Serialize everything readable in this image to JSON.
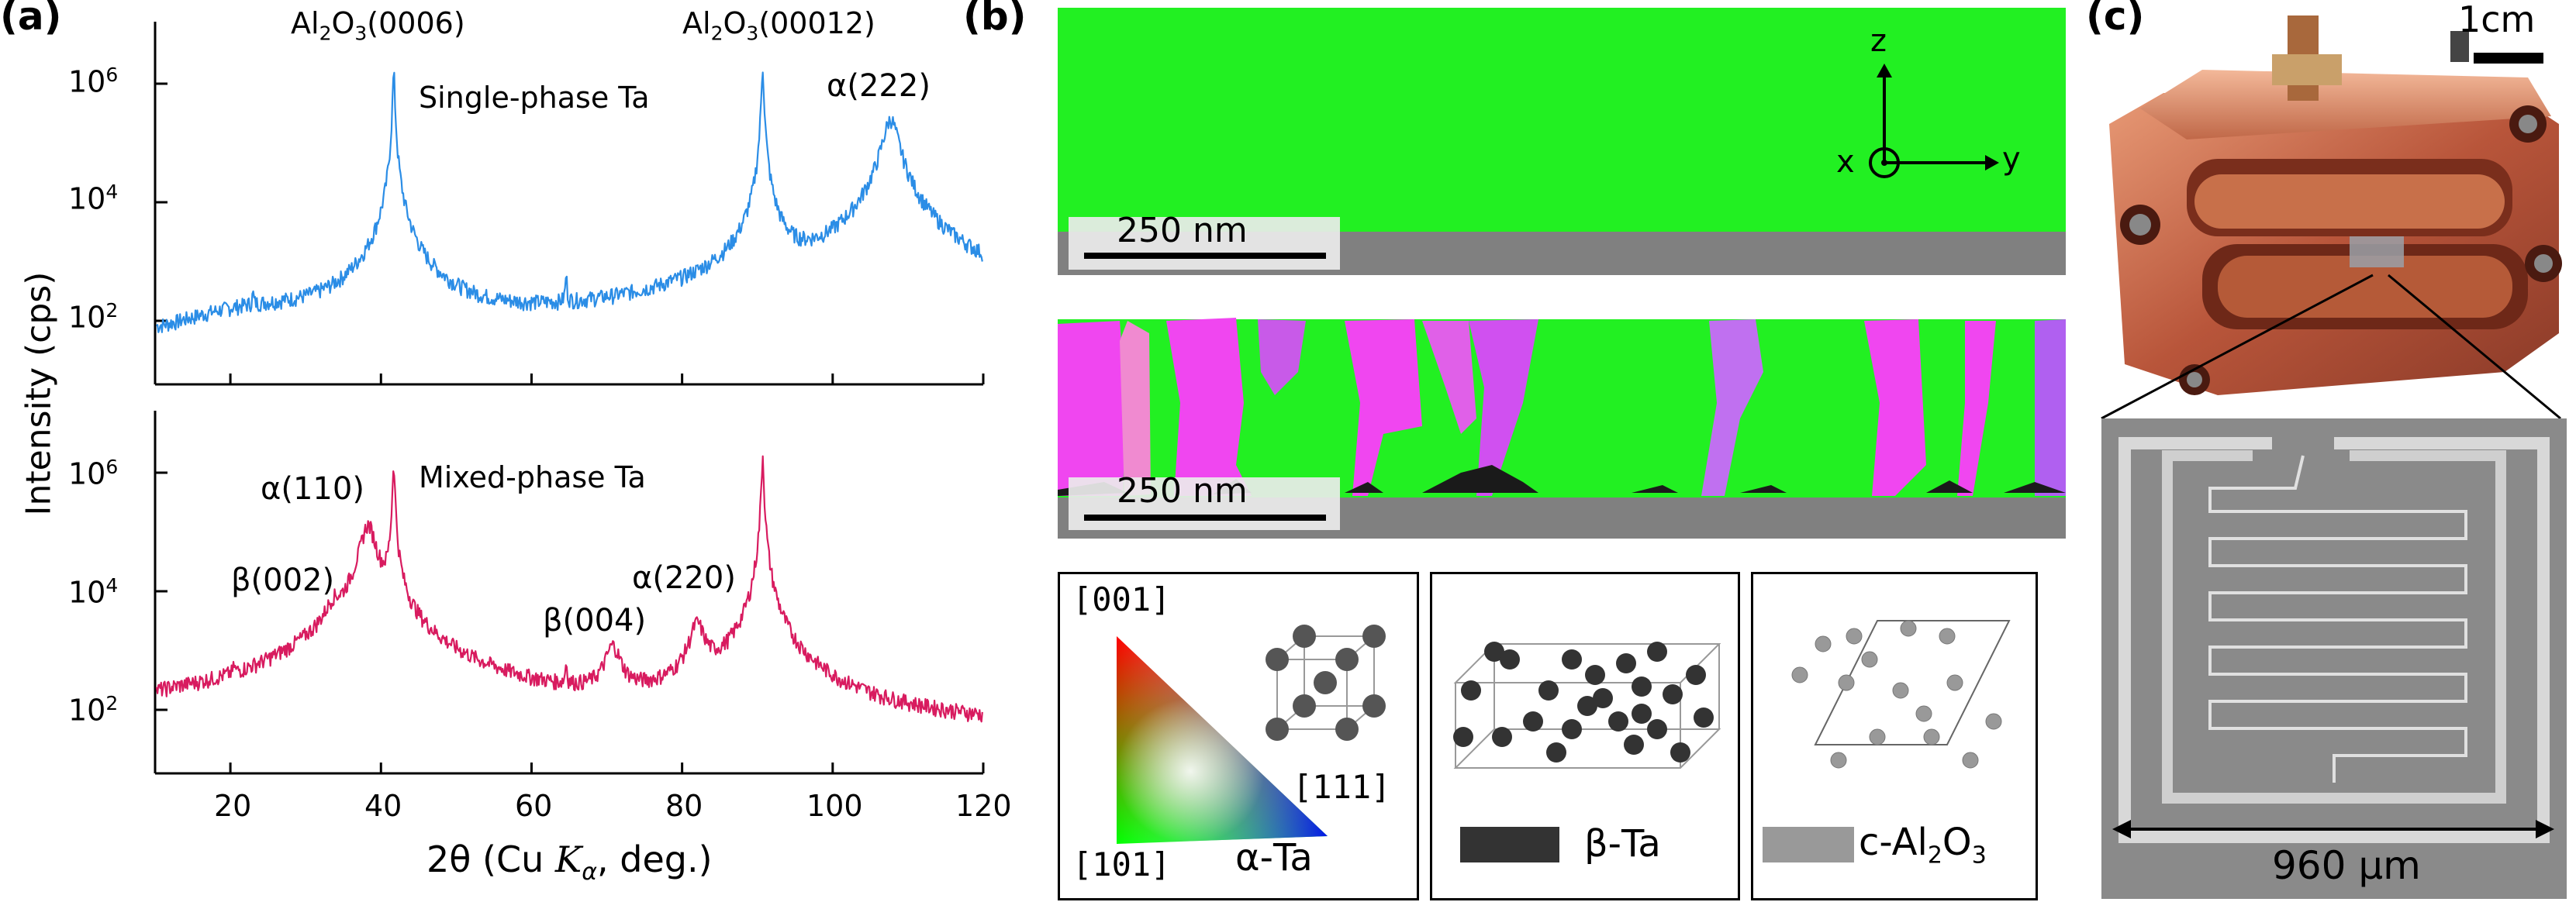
{
  "panels": {
    "a": "(a)",
    "b": "(b)",
    "c": "(c)"
  },
  "panel_a": {
    "ylabel": "Intensity (cps)",
    "xlabel_pre": "2θ (Cu ",
    "xlabel_K": "K",
    "xlabel_alpha": "α",
    "xlabel_post": ", deg.)",
    "x_ticks": [
      "20",
      "40",
      "60",
      "80",
      "100",
      "120"
    ],
    "top": {
      "series_label": "Single-phase Ta",
      "color": "#2b8de6",
      "peak_labels": {
        "al0006_pre": "Al",
        "al0006_sub1": "2",
        "al0006_mid": "O",
        "al0006_sub2": "3",
        "al0006_post": "(0006)",
        "al00012_pre": "Al",
        "al00012_sub1": "2",
        "al00012_mid": "O",
        "al00012_sub2": "3",
        "al00012_post": "(00012)",
        "a222": "α(222)"
      }
    },
    "bottom": {
      "series_label": "Mixed-phase Ta",
      "color": "#d81b5f",
      "peak_labels": {
        "a110": "α(110)",
        "b002": "β(002)",
        "b004": "β(004)",
        "a220": "α(220)"
      }
    },
    "y_ticks": [
      {
        "base": "10",
        "exp": "6"
      },
      {
        "base": "10",
        "exp": "4"
      },
      {
        "base": "10",
        "exp": "2"
      }
    ]
  },
  "panel_b": {
    "scalebar_top": "250 nm",
    "scalebar_bottom": "250 nm",
    "axes": {
      "z": "z",
      "x": "x",
      "y": "y"
    },
    "legend": {
      "dir001": "[001]",
      "dir101": "[101]",
      "dir111": "[111]",
      "alpha_ta": "α-Ta",
      "beta_ta": "β-Ta",
      "al2o3_pre": "c-Al",
      "al2o3_sub1": "2",
      "al2o3_mid": "O",
      "al2o3_sub2": "3"
    },
    "colors": {
      "alpha_green": "#22f022",
      "magenta": "#f046f0",
      "purple": "#a04cf0",
      "substrate": "#808080",
      "beta": "#1a1a1a"
    }
  },
  "panel_c": {
    "scalebar": "1cm",
    "resonator_scale": "960 μm"
  },
  "chart_data": [
    {
      "type": "line",
      "title": "",
      "xlabel": "2θ (Cu Kα, deg.)",
      "ylabel": "Intensity (cps)",
      "xlim": [
        10,
        120
      ],
      "ylim": [
        10,
        10000000
      ],
      "yscale": "log",
      "series": [
        {
          "name": "Single-phase Ta",
          "peaks": [
            {
              "x": 23,
              "y": 100,
              "label": ""
            },
            {
              "x": 41.7,
              "y": 1500000,
              "label": "Al2O3(0006)"
            },
            {
              "x": 64.6,
              "y": 400,
              "label": ""
            },
            {
              "x": 90.7,
              "y": 2000000,
              "label": "Al2O3(00012)"
            },
            {
              "x": 107.7,
              "y": 250000,
              "label": "α(222)"
            }
          ],
          "baseline": 25
        }
      ]
    },
    {
      "type": "line",
      "title": "",
      "xlabel": "2θ (Cu Kα, deg.)",
      "ylabel": "Intensity (cps)",
      "xlim": [
        10,
        120
      ],
      "ylim": [
        10,
        10000000
      ],
      "yscale": "log",
      "series": [
        {
          "name": "Mixed-phase Ta",
          "peaks": [
            {
              "x": 20.5,
              "y": 150,
              "label": ""
            },
            {
              "x": 33.7,
              "y": 3000,
              "label": "β(002)"
            },
            {
              "x": 38.3,
              "y": 130000,
              "label": "α(110)"
            },
            {
              "x": 41.7,
              "y": 1500000,
              "label": ""
            },
            {
              "x": 64.6,
              "y": 400,
              "label": ""
            },
            {
              "x": 70.8,
              "y": 1000,
              "label": "β(004)"
            },
            {
              "x": 82.0,
              "y": 2500,
              "label": "α(220)"
            },
            {
              "x": 90.7,
              "y": 2000000,
              "label": ""
            }
          ],
          "baseline": 30
        }
      ]
    }
  ]
}
